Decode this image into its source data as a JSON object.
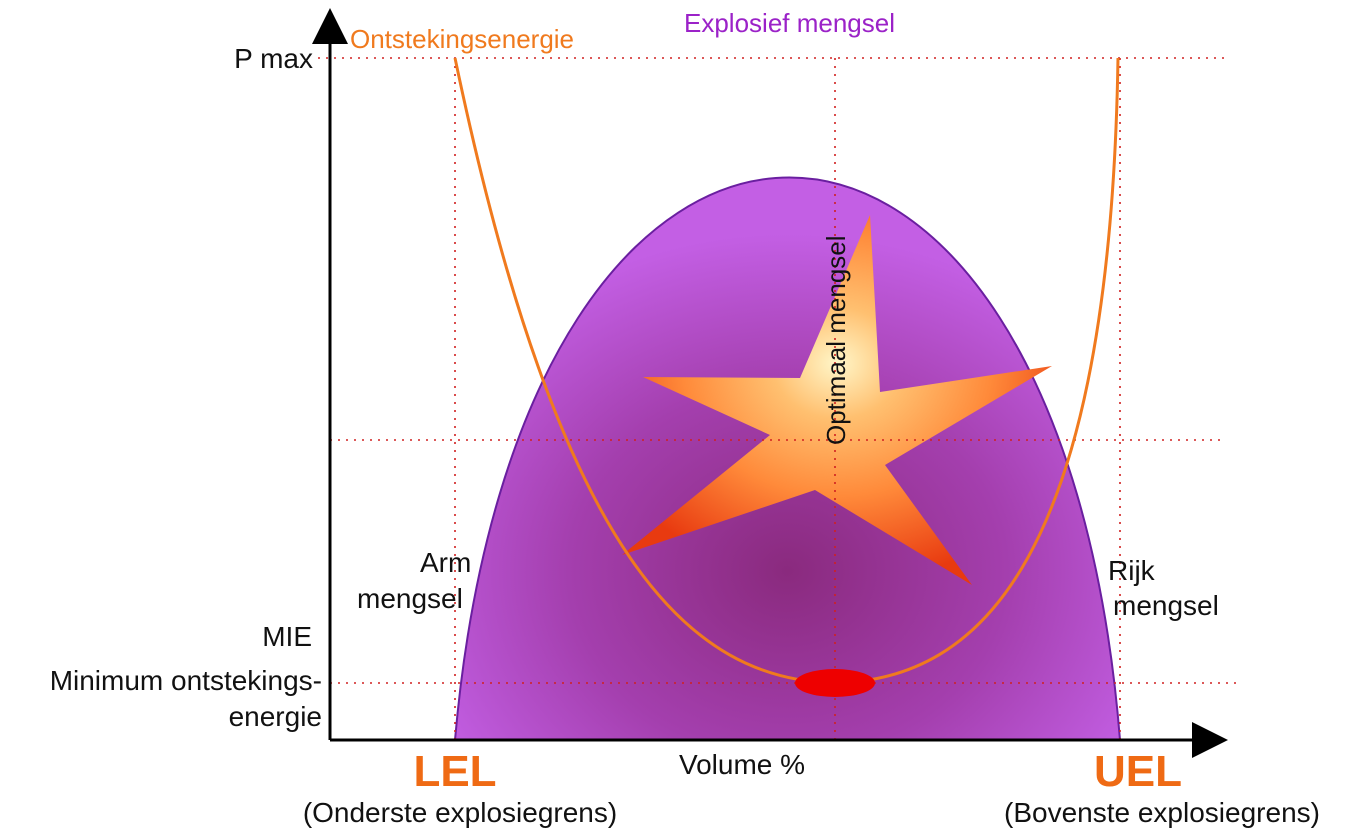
{
  "labels": {
    "ignition_energy": "Ontstekingsenergie",
    "explosive_mixture": "Explosief mengsel",
    "pmax": "P max",
    "optimal_mixture": "Optimaal mengsel",
    "lean_line1": "Arm",
    "lean_line2": "mengsel",
    "rich_line1": "Rijk",
    "rich_line2": "mengsel",
    "mie": "MIE",
    "mie_desc_line1": "Minimum ontstekings-",
    "mie_desc_line2": "energie",
    "x_axis": "Volume %",
    "lel": "LEL",
    "lel_desc": "(Onderste explosiegrens)",
    "uel": "UEL",
    "uel_desc": "(Bovenste explosiegrens)"
  },
  "colors": {
    "explosive_region": "#b34fd6",
    "explosive_outline": "#6a1fa0",
    "ignition_curve": "#f07a1e",
    "star": "#ff9a3c",
    "mie_point": "#ee0000",
    "guide_lines": "#d02020",
    "axis": "#000000"
  }
}
